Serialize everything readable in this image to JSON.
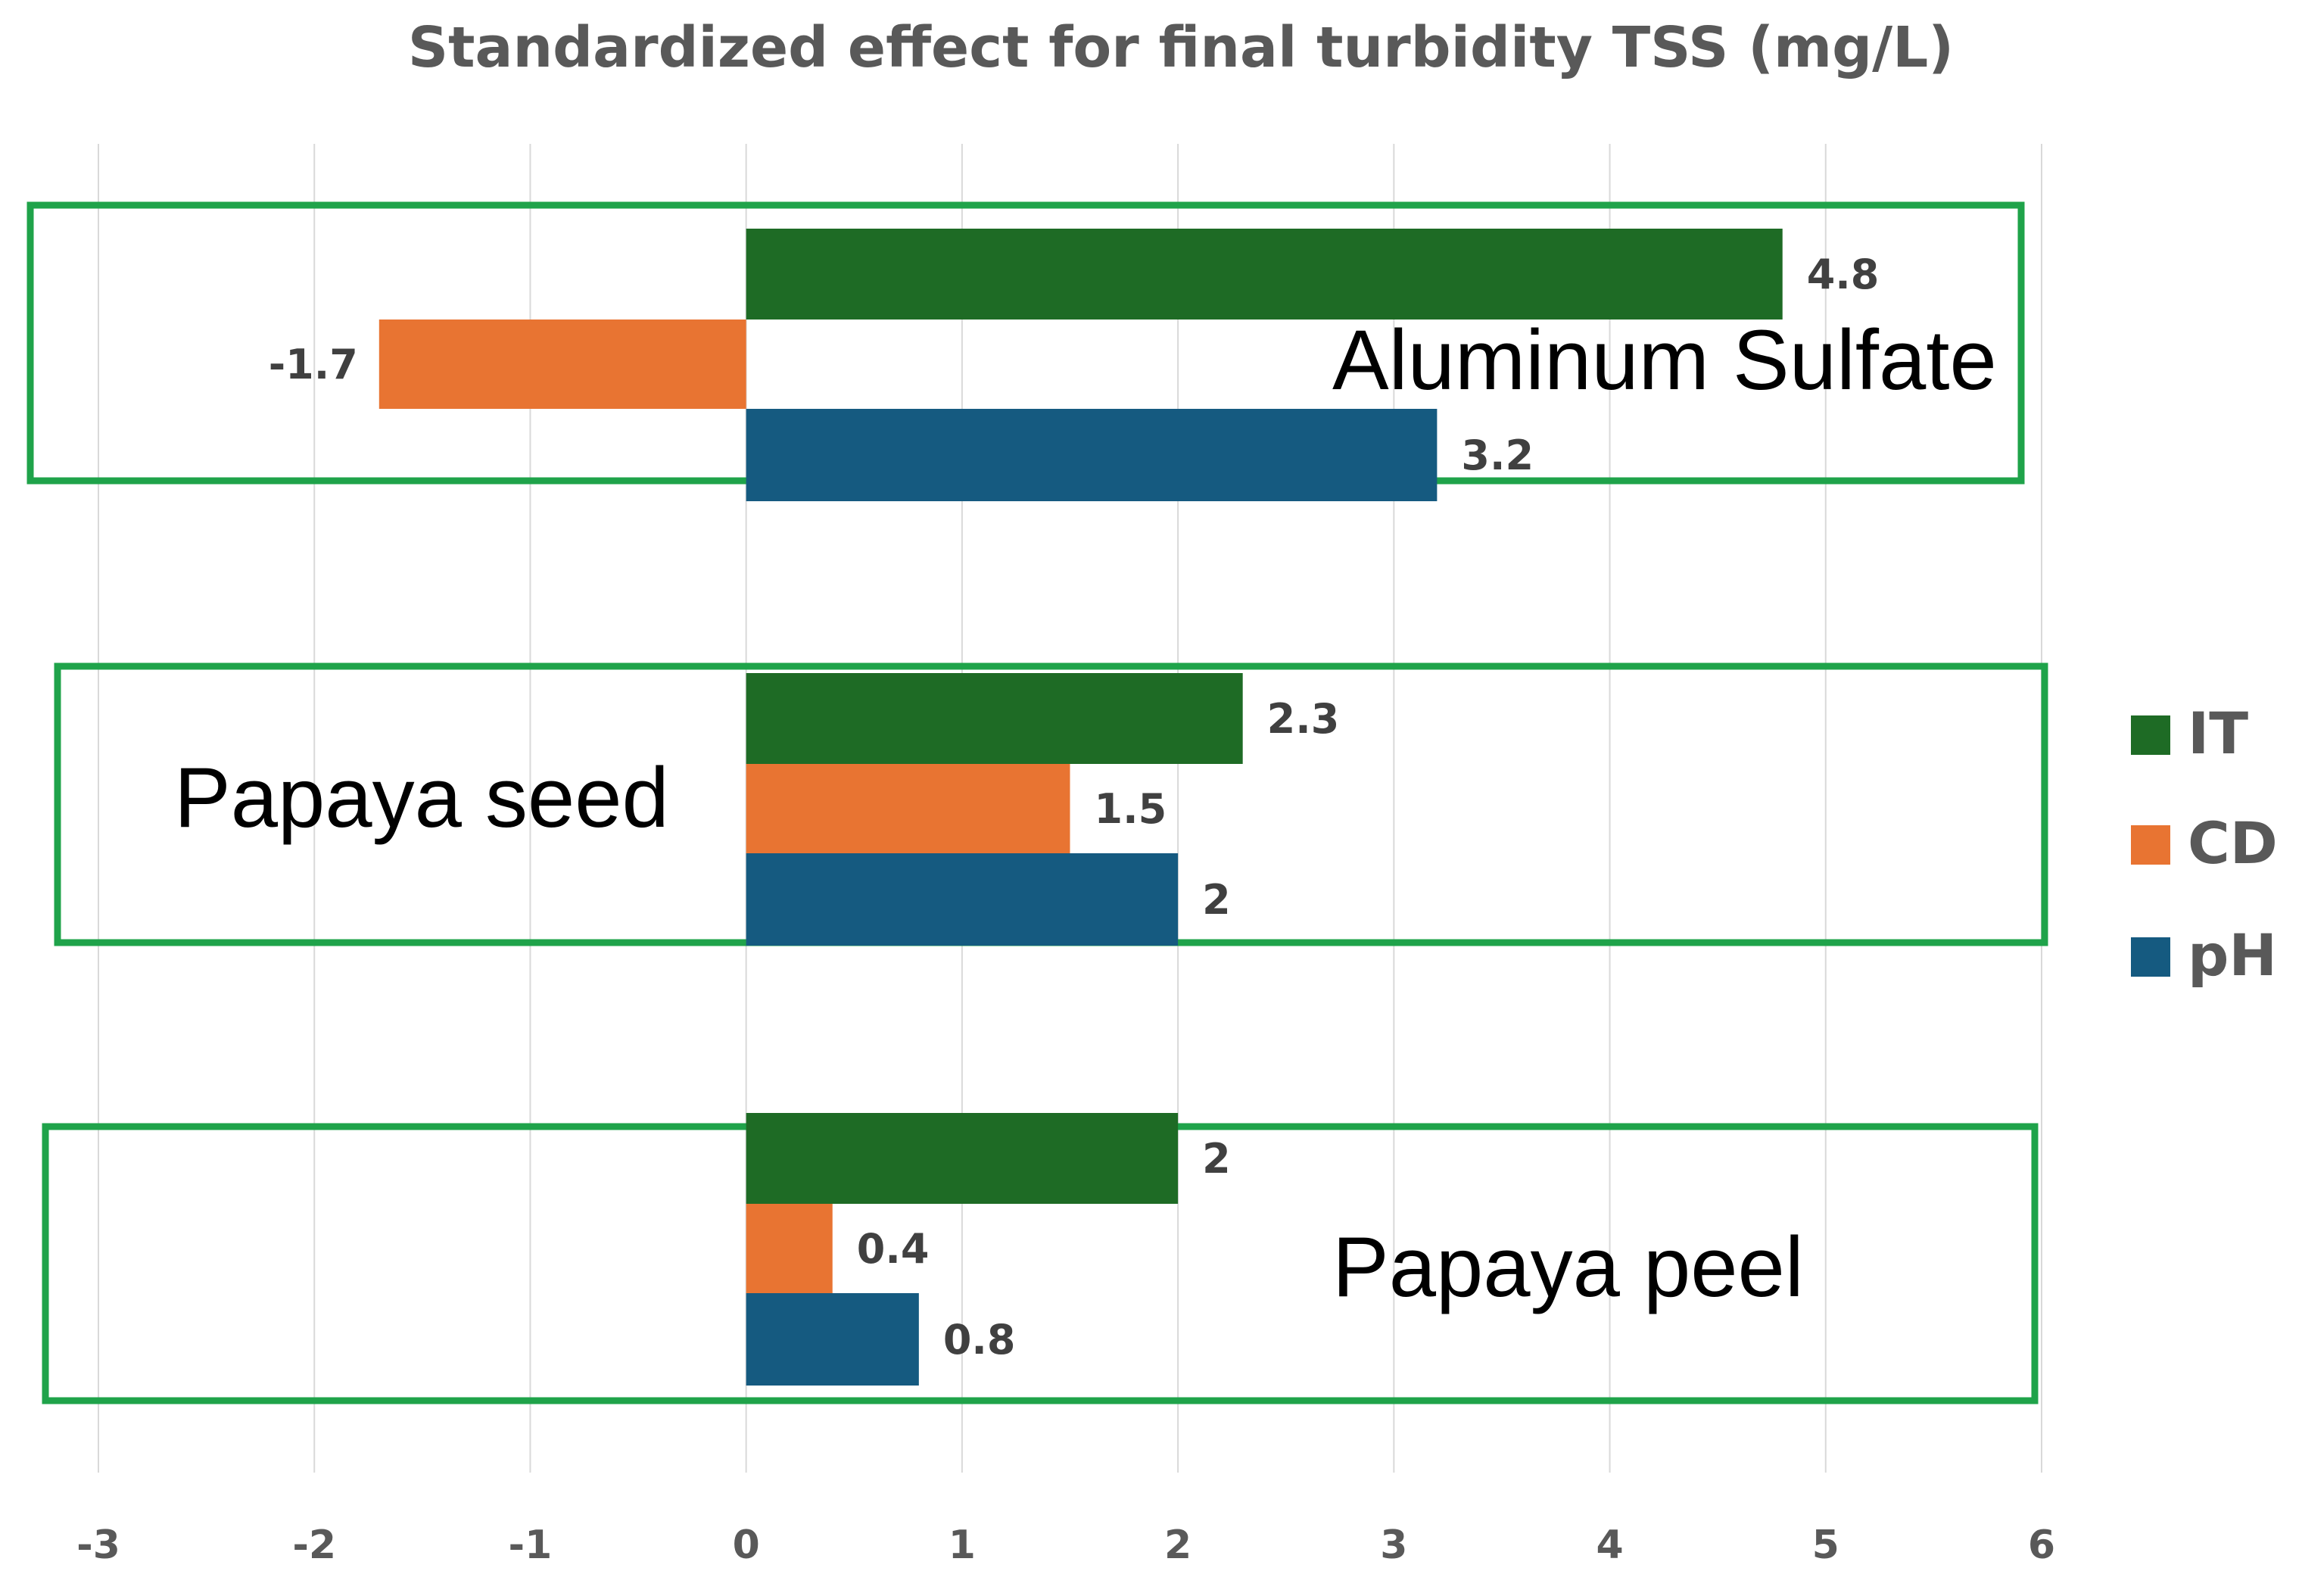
{
  "chart_data": {
    "type": "bar",
    "orientation": "horizontal",
    "title": "Standardized effect for final turbidity TSS (mg/L)",
    "xlabel": "",
    "ylabel": "",
    "xlim": [
      -3,
      6
    ],
    "xticks": [
      "-3",
      "-2",
      "-1",
      "0",
      "1",
      "2",
      "3",
      "4",
      "5",
      "6"
    ],
    "grid": true,
    "legend_position": "right",
    "categories": [
      "Aluminum Sulfate",
      "Papaya seed",
      "Papaya peel"
    ],
    "series": [
      {
        "name": "IT",
        "color": "#1e6b25",
        "values": [
          4.8,
          2.3,
          2
        ],
        "labels": [
          "4.8",
          "2.3",
          "2"
        ]
      },
      {
        "name": "CD",
        "color": "#e87432",
        "values": [
          -1.7,
          1.5,
          0.4
        ],
        "labels": [
          "-1.7",
          "1.5",
          "0.4"
        ]
      },
      {
        "name": "pH",
        "color": "#155a80",
        "values": [
          3.2,
          2,
          0.8
        ],
        "labels": [
          "3.2",
          "2",
          "0.8"
        ]
      }
    ],
    "group_box_color": "#1fa34a"
  }
}
